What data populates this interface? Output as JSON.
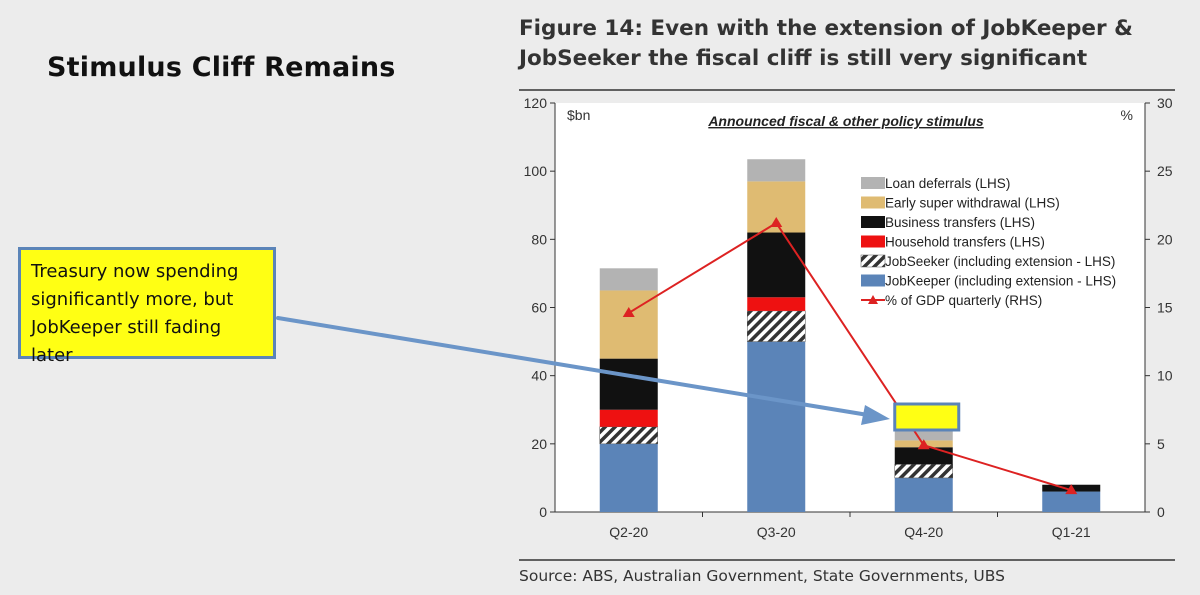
{
  "slide": {
    "title": "Stimulus Cliff Remains",
    "callout": "Treasury now spending significantly more, but JobKeeper still fading later"
  },
  "figure": {
    "title_line1": "Figure 14: Even with the extension of JobKeeper &",
    "title_line2": "JobSeeker the fiscal cliff is still very significant",
    "source": "Source:  ABS, Australian Government, State Governments, UBS"
  },
  "colors": {
    "jobkeeper": "#5b84b8",
    "jobseeker": "#ffffff",
    "household": "#ee1111",
    "business": "#111111",
    "super": "#dfbb72",
    "loan": "#b3b3b3",
    "gdp_line": "#dd2222",
    "callout_fill": "#ffff14",
    "callout_border": "#5b84b8",
    "arrow": "#6b95c8"
  },
  "chart_data": {
    "type": "bar",
    "subtype": "stacked bar with line on secondary axis",
    "title": "Announced fiscal & other policy stimulus",
    "ylabel": "$bn",
    "y2label": "%",
    "ylim": [
      0,
      120
    ],
    "y2lim": [
      0,
      30
    ],
    "yticks": [
      0,
      20,
      40,
      60,
      80,
      100,
      120
    ],
    "y2ticks": [
      0,
      5,
      10,
      15,
      20,
      25,
      30
    ],
    "categories": [
      "Q2-20",
      "Q3-20",
      "Q4-20",
      "Q1-21"
    ],
    "series": [
      {
        "name": "JobKeeper (including extension - LHS)",
        "key": "jobkeeper",
        "values": [
          20,
          50,
          10,
          6
        ]
      },
      {
        "name": "JobSeeker (including extension - LHS)",
        "key": "jobseeker",
        "values": [
          5,
          9,
          4,
          0
        ]
      },
      {
        "name": "Household transfers (LHS)",
        "key": "household",
        "values": [
          5,
          4,
          0,
          0
        ]
      },
      {
        "name": "Business transfers (LHS)",
        "key": "business",
        "values": [
          15,
          19,
          5,
          2
        ]
      },
      {
        "name": "Early super withdrawal (LHS)",
        "key": "super",
        "values": [
          20,
          15,
          2,
          0
        ]
      },
      {
        "name": "Loan deferrals (LHS)",
        "key": "loan",
        "values": [
          6.5,
          6.5,
          3,
          0
        ]
      }
    ],
    "line": {
      "name": "% of GDP quarterly (RHS)",
      "key": "gdp_line",
      "values": [
        14.6,
        21.2,
        4.9,
        1.6
      ]
    },
    "legend_order": [
      "loan",
      "super",
      "business",
      "household",
      "jobseeker",
      "jobkeeper",
      "gdp_line"
    ],
    "legend_position": "top-right"
  }
}
